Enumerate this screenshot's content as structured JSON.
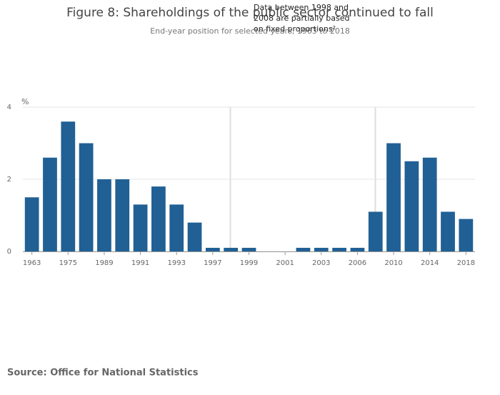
{
  "chart_data": {
    "type": "bar",
    "title": "Figure 8: Shareholdings of the public sector continued to fall",
    "subtitle": "End-year position for selected years, 1963 to 2018",
    "ylabel": "%",
    "annotation": "Data between 1998 and 2008 are partially based on fixed proportions²",
    "source": "Source: Office for National Statistics",
    "categories": [
      "1963",
      null,
      "1975",
      null,
      "1989",
      null,
      "1991",
      null,
      "1993",
      null,
      "1997",
      null,
      "1999",
      null,
      "2001",
      null,
      "2003",
      null,
      "2006",
      null,
      "2010",
      null,
      "2014",
      null,
      "2018"
    ],
    "values": [
      1.5,
      2.6,
      3.6,
      3.0,
      2.0,
      2.0,
      1.3,
      1.8,
      1.3,
      0.8,
      0.1,
      0.1,
      0.1,
      0,
      0,
      0.1,
      0.1,
      0.1,
      0.1,
      1.1,
      3.0,
      2.5,
      2.6,
      1.1,
      0.9
    ],
    "color": "#206095",
    "ylim": [
      0,
      4
    ],
    "yticks": [
      0,
      2,
      4
    ],
    "grid": true
  }
}
